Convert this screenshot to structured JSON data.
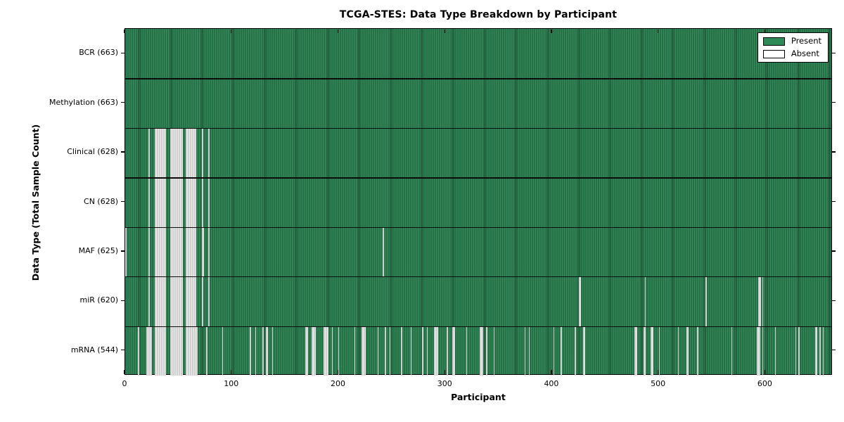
{
  "chart_data": {
    "type": "heatmap",
    "title": "TCGA-STES: Data Type Breakdown by Participant",
    "xlabel": "Participant",
    "ylabel": "Data Type (Total Sample Count)",
    "x_ticks": [
      0,
      100,
      200,
      300,
      400,
      500,
      600
    ],
    "x_max": 663,
    "n_participants": 663,
    "grid": false,
    "legend_position": "upper right",
    "colors": {
      "present": "#2e8b57",
      "absent": "#ffffff"
    },
    "legend": [
      {
        "label": "Present",
        "color": "#2e8b57"
      },
      {
        "label": "Absent",
        "color": "#ffffff"
      }
    ],
    "rows": [
      {
        "label": "BCR (663)",
        "data_type": "BCR",
        "total": 663,
        "absent_count": 0,
        "absent_ranges": []
      },
      {
        "label": "Methylation (663)",
        "data_type": "Methylation",
        "total": 663,
        "absent_count": 0,
        "absent_ranges": []
      },
      {
        "label": "Clinical (628)",
        "data_type": "Clinical",
        "total": 628,
        "absent_count": 35,
        "absent_ranges": [
          [
            22,
            23
          ],
          [
            28,
            38
          ],
          [
            42,
            54
          ],
          [
            57,
            67
          ],
          [
            72,
            73
          ],
          [
            78,
            79
          ]
        ]
      },
      {
        "label": "CN (628)",
        "data_type": "CN",
        "total": 628,
        "absent_count": 35,
        "absent_ranges": [
          [
            22,
            23
          ],
          [
            28,
            38
          ],
          [
            42,
            54
          ],
          [
            57,
            67
          ],
          [
            72,
            73
          ],
          [
            78,
            79
          ]
        ]
      },
      {
        "label": "MAF (625)",
        "data_type": "MAF",
        "total": 625,
        "absent_count": 38,
        "absent_ranges": [
          [
            0,
            1
          ],
          [
            22,
            23
          ],
          [
            28,
            38
          ],
          [
            42,
            54
          ],
          [
            57,
            67
          ],
          [
            72,
            74
          ],
          [
            78,
            79
          ],
          [
            242,
            243
          ]
        ]
      },
      {
        "label": "miR (620)",
        "data_type": "miR",
        "total": 620,
        "absent_count": 43,
        "absent_ranges": [
          [
            22,
            23
          ],
          [
            28,
            38
          ],
          [
            42,
            54
          ],
          [
            57,
            67
          ],
          [
            72,
            73
          ],
          [
            78,
            79
          ],
          [
            426,
            428
          ],
          [
            488,
            489
          ],
          [
            545,
            546
          ],
          [
            594,
            597
          ],
          [
            598,
            599
          ]
        ]
      },
      {
        "label": "mRNA (544)",
        "data_type": "mRNA",
        "total": 544,
        "absent_count": 119,
        "absent_ranges": [
          [
            12,
            13
          ],
          [
            20,
            25
          ],
          [
            28,
            38
          ],
          [
            42,
            54
          ],
          [
            57,
            68
          ],
          [
            76,
            77
          ],
          [
            91,
            92
          ],
          [
            117,
            118
          ],
          [
            122,
            123
          ],
          [
            129,
            130
          ],
          [
            132,
            134
          ],
          [
            138,
            139
          ],
          [
            169,
            172
          ],
          [
            175,
            179
          ],
          [
            186,
            191
          ],
          [
            194,
            195
          ],
          [
            200,
            201
          ],
          [
            215,
            216
          ],
          [
            222,
            226
          ],
          [
            237,
            238
          ],
          [
            244,
            245
          ],
          [
            248,
            249
          ],
          [
            259,
            260
          ],
          [
            268,
            269
          ],
          [
            279,
            280
          ],
          [
            283,
            284
          ],
          [
            290,
            294
          ],
          [
            302,
            303
          ],
          [
            307,
            310
          ],
          [
            320,
            321
          ],
          [
            333,
            336
          ],
          [
            339,
            340
          ],
          [
            346,
            347
          ],
          [
            375,
            376
          ],
          [
            379,
            380
          ],
          [
            402,
            403
          ],
          [
            409,
            410
          ],
          [
            422,
            423
          ],
          [
            430,
            432
          ],
          [
            478,
            481
          ],
          [
            487,
            489
          ],
          [
            493,
            496
          ],
          [
            501,
            502
          ],
          [
            519,
            520
          ],
          [
            527,
            529
          ],
          [
            537,
            538
          ],
          [
            569,
            570
          ],
          [
            593,
            596
          ],
          [
            598,
            599
          ],
          [
            610,
            611
          ],
          [
            629,
            630
          ],
          [
            632,
            633
          ],
          [
            648,
            650
          ],
          [
            652,
            653
          ],
          [
            655,
            656
          ]
        ]
      }
    ]
  }
}
